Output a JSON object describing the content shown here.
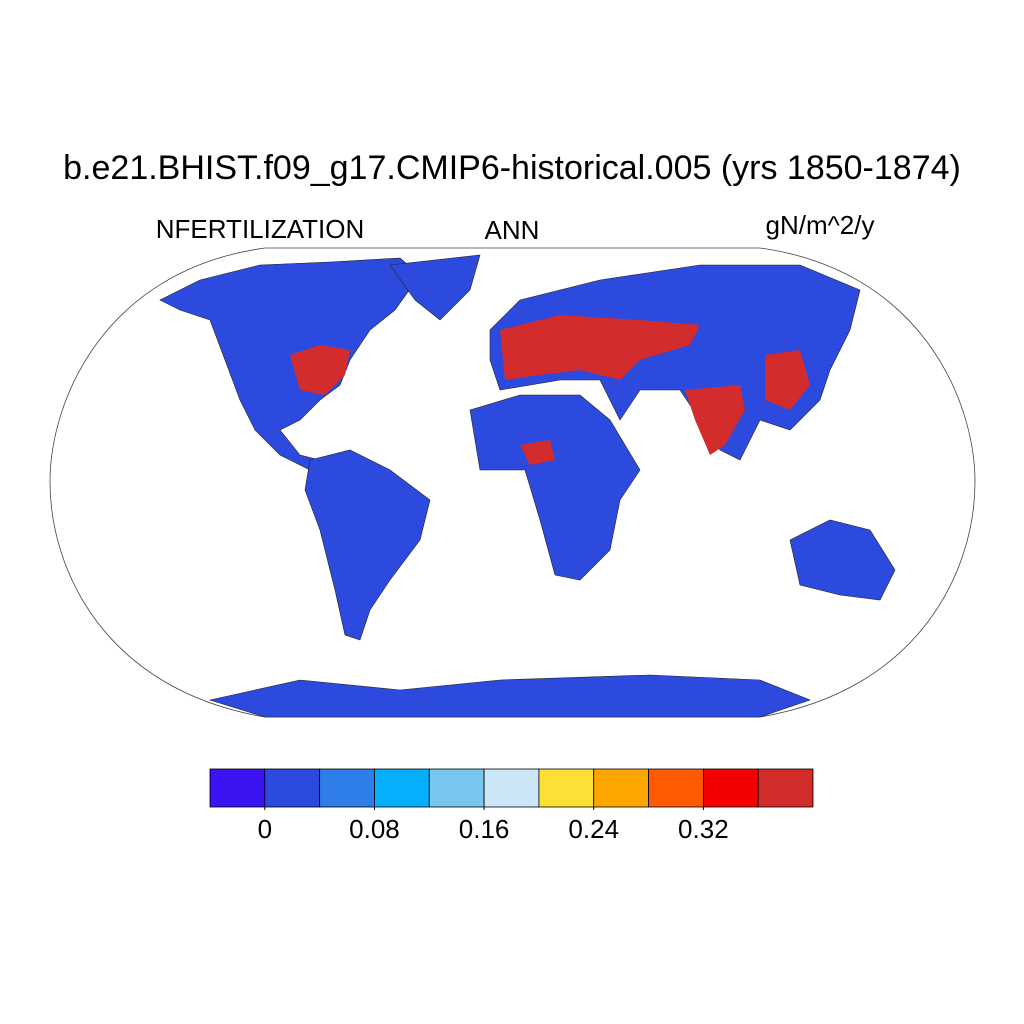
{
  "title": "b.e21.BHIST.f09_g17.CMIP6-historical.005 (yrs 1850-1874)",
  "left_label": "NFERTILIZATION",
  "center_label": "ANN",
  "right_label": "gN/m^2/y",
  "colorbar": {
    "colors": [
      "#3c14f4",
      "#2d4ade",
      "#2f7de8",
      "#05affc",
      "#76c6ee",
      "#cbe6f6",
      "#fde035",
      "#ffa500",
      "#ff5a00",
      "#f40000",
      "#d22c2c"
    ],
    "lim": [
      -0.04,
      0.4
    ],
    "ticks": [
      0,
      0.08,
      0.16,
      0.24,
      0.32
    ]
  }
}
